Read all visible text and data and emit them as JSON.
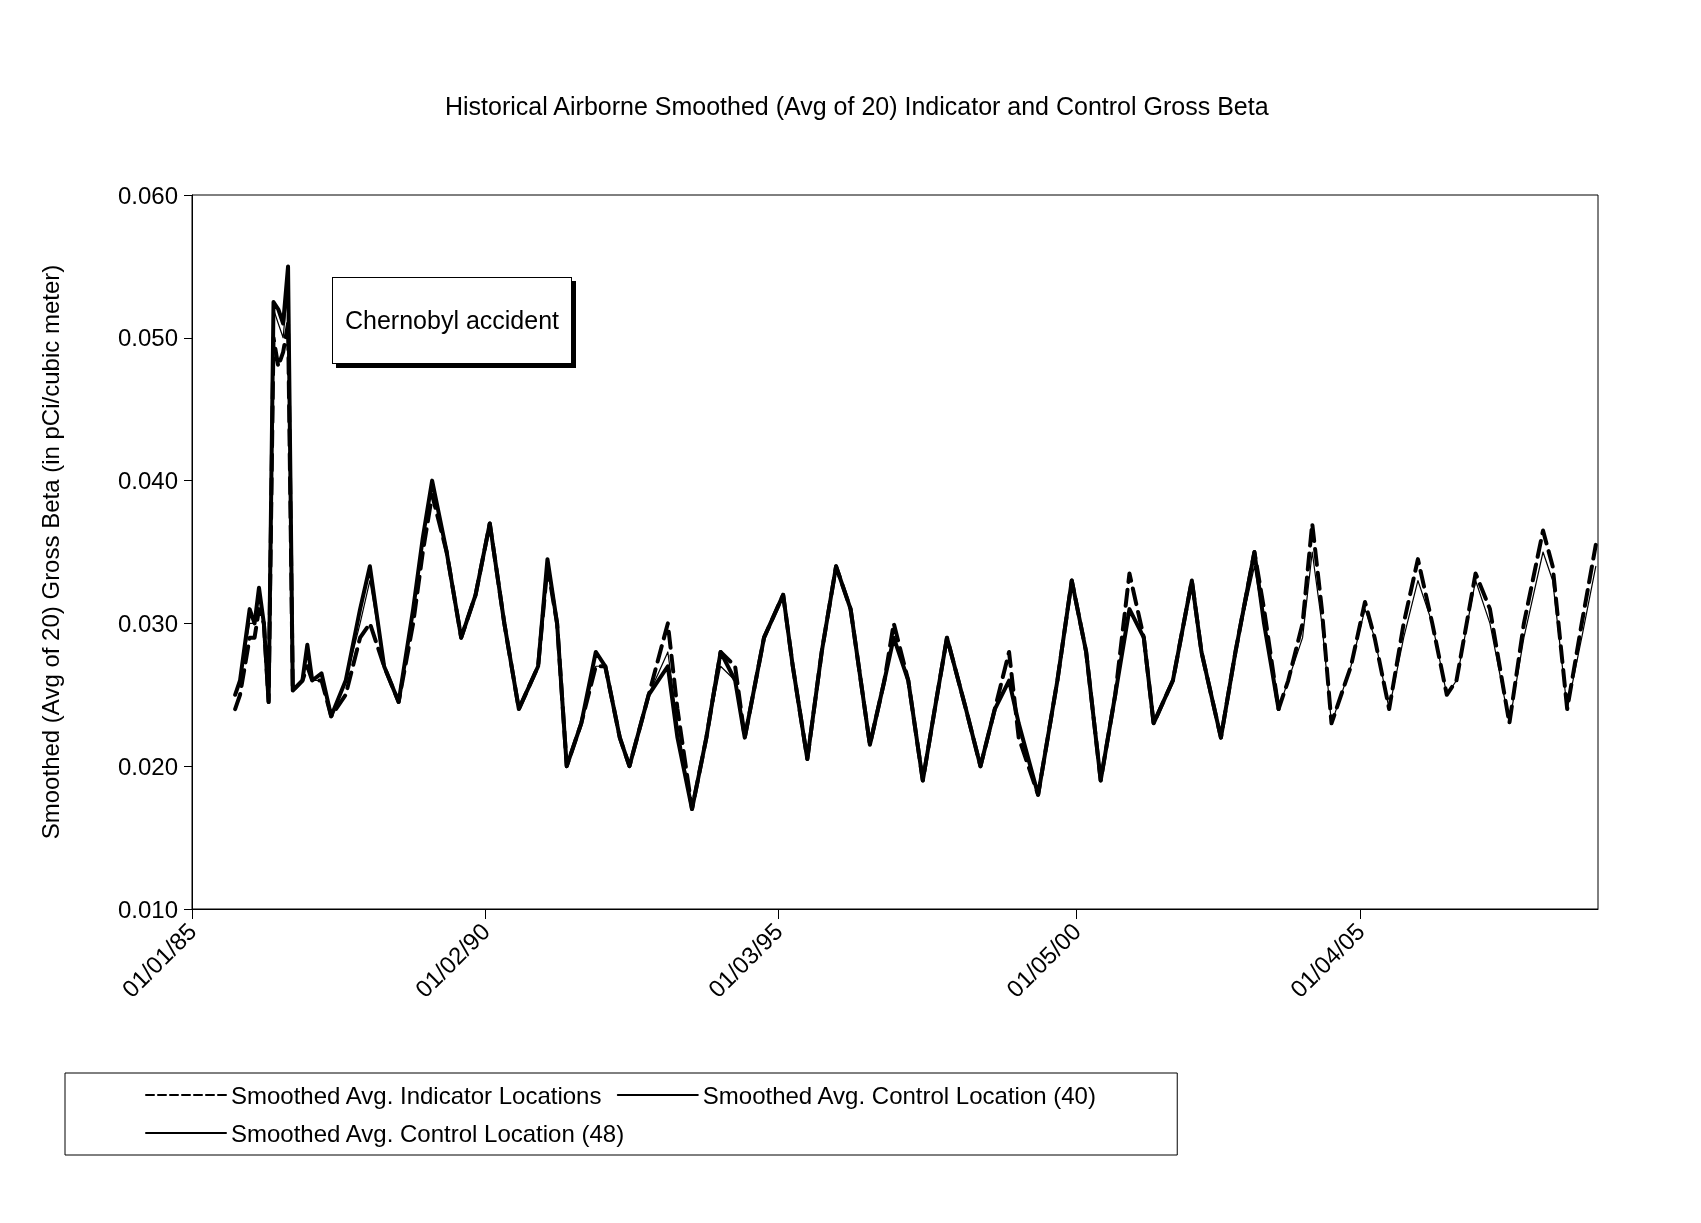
{
  "chart_data": {
    "type": "line",
    "title": "Historical Airborne Smoothed (Avg of 20) Indicator and Control Gross Beta",
    "ylabel": "Smoothed (Avg of 20) Gross Beta (in pCi/cubic meter)",
    "annotations": [
      "Chernobyl accident"
    ],
    "xlim": [
      "1985-01-01",
      "2009-05-15"
    ],
    "xticks": [
      {
        "value": "1985-01-01",
        "label": "01/01/85"
      },
      {
        "value": "1990-02-01",
        "label": "01/02/90"
      },
      {
        "value": "1995-03-01",
        "label": "01/03/95"
      },
      {
        "value": "2000-05-01",
        "label": "01/05/00"
      },
      {
        "value": "2005-04-01",
        "label": "01/04/05"
      }
    ],
    "ylim": [
      0.01,
      0.06
    ],
    "yticks": [
      {
        "value": 0.01,
        "label": "0.010"
      },
      {
        "value": 0.02,
        "label": "0.020"
      },
      {
        "value": 0.03,
        "label": "0.030"
      },
      {
        "value": 0.04,
        "label": "0.040"
      },
      {
        "value": 0.05,
        "label": "0.050"
      },
      {
        "value": 0.06,
        "label": "0.060"
      }
    ],
    "grid": false,
    "legend": "bottom",
    "marker": "none",
    "series": [
      {
        "name": "Smoothed Avg. Indicator Locations",
        "color": "#000000",
        "line_style": "dashed",
        "x": [
          "1985-10",
          "1985-11",
          "1986-01",
          "1986-02",
          "1986-03",
          "1986-04",
          "1986-05",
          "1986-06",
          "1986-07",
          "1986-08",
          "1986-09",
          "1986-10",
          "1986-12",
          "1987-01",
          "1987-02",
          "1987-04",
          "1987-06",
          "1987-09",
          "1987-12",
          "1988-02",
          "1988-05",
          "1988-08",
          "1988-11",
          "1989-01",
          "1989-03",
          "1989-06",
          "1989-09",
          "1989-12",
          "1990-03",
          "1990-06",
          "1990-09",
          "1991-01",
          "1991-03",
          "1991-05",
          "1991-07",
          "1991-10",
          "1992-01",
          "1992-03",
          "1992-06",
          "1992-08",
          "1992-12",
          "1993-04",
          "1993-06",
          "1993-09",
          "1993-12",
          "1994-03",
          "1994-06",
          "1994-08",
          "1994-12",
          "1995-04",
          "1995-06",
          "1995-09",
          "1995-12",
          "1996-03",
          "1996-06",
          "1996-10",
          "1997-01",
          "1997-03",
          "1997-06",
          "1997-09",
          "1997-12",
          "1998-02",
          "1998-06",
          "1998-09",
          "1998-12",
          "1999-03",
          "1999-05",
          "1999-09",
          "2000-01",
          "2000-04",
          "2000-07",
          "2000-10",
          "2001-01",
          "2001-04",
          "2001-07",
          "2001-09",
          "2002-01",
          "2002-05",
          "2002-07",
          "2002-11",
          "2003-02",
          "2003-06",
          "2003-08",
          "2003-11",
          "2004-01",
          "2004-04",
          "2004-06",
          "2004-08",
          "2004-10",
          "2005-02",
          "2005-05",
          "2005-07",
          "2005-10",
          "2006-01",
          "2006-04",
          "2006-07",
          "2006-10",
          "2006-12",
          "2007-04",
          "2007-07",
          "2007-11",
          "2008-02",
          "2008-06",
          "2008-08",
          "2008-11",
          "2009-02",
          "2009-05"
        ],
        "values": [
          0.024,
          0.025,
          0.029,
          0.029,
          0.031,
          0.03,
          0.0245,
          0.05,
          0.048,
          0.049,
          0.051,
          0.0253,
          0.026,
          0.027,
          0.026,
          0.026,
          0.0235,
          0.025,
          0.029,
          0.03,
          0.027,
          0.0245,
          0.03,
          0.035,
          0.039,
          0.035,
          0.029,
          0.032,
          0.037,
          0.03,
          0.024,
          0.027,
          0.034,
          0.03,
          0.02,
          0.023,
          0.027,
          0.027,
          0.022,
          0.02,
          0.025,
          0.03,
          0.024,
          0.017,
          0.022,
          0.028,
          0.027,
          0.022,
          0.029,
          0.032,
          0.027,
          0.0205,
          0.028,
          0.034,
          0.031,
          0.0215,
          0.026,
          0.03,
          0.026,
          0.019,
          0.025,
          0.029,
          0.024,
          0.02,
          0.024,
          0.028,
          0.022,
          0.018,
          0.026,
          0.033,
          0.028,
          0.019,
          0.025,
          0.0335,
          0.029,
          0.023,
          0.026,
          0.033,
          0.028,
          0.022,
          0.028,
          0.035,
          0.031,
          0.024,
          0.026,
          0.03,
          0.037,
          0.031,
          0.023,
          0.027,
          0.0315,
          0.029,
          0.024,
          0.03,
          0.0345,
          0.03,
          0.025,
          0.026,
          0.0335,
          0.031,
          0.023,
          0.03,
          0.0365,
          0.034,
          0.024,
          0.03,
          0.0355
        ]
      },
      {
        "name": "Smoothed Avg. Control Location (40)",
        "color": "#000000",
        "line_style": "solid",
        "x": [
          "1985-10",
          "1985-11",
          "1986-01",
          "1986-02",
          "1986-03",
          "1986-04",
          "1986-05",
          "1986-06",
          "1986-07",
          "1986-08",
          "1986-09",
          "1986-10",
          "1986-12",
          "1987-01",
          "1987-02",
          "1987-04",
          "1987-06",
          "1987-09",
          "1987-12",
          "1988-02",
          "1988-05",
          "1988-08",
          "1988-11",
          "1989-01",
          "1989-03",
          "1989-06",
          "1989-09",
          "1989-12",
          "1990-03",
          "1990-06",
          "1990-09",
          "1991-01",
          "1991-03",
          "1991-05",
          "1991-07",
          "1991-10",
          "1992-01",
          "1992-03",
          "1992-06",
          "1992-08",
          "1992-12",
          "1993-04",
          "1993-06",
          "1993-09",
          "1993-12",
          "1994-03",
          "1994-06",
          "1994-08",
          "1994-12",
          "1995-04",
          "1995-06",
          "1995-09",
          "1995-12",
          "1996-03",
          "1996-06",
          "1996-10",
          "1997-01",
          "1997-03",
          "1997-06",
          "1997-09",
          "1997-12",
          "1998-02",
          "1998-06",
          "1998-09",
          "1998-12",
          "1999-03",
          "1999-05",
          "1999-09",
          "2000-01",
          "2000-04",
          "2000-07",
          "2000-10",
          "2001-01",
          "2001-04",
          "2001-07",
          "2001-09",
          "2002-01",
          "2002-05",
          "2002-07",
          "2002-11",
          "2003-02",
          "2003-06",
          "2003-08",
          "2003-11"
        ],
        "values": [
          0.025,
          0.026,
          0.031,
          0.03,
          0.0325,
          0.03,
          0.0245,
          0.0525,
          0.052,
          0.051,
          0.055,
          0.0253,
          0.026,
          0.0285,
          0.026,
          0.0265,
          0.0235,
          0.026,
          0.031,
          0.034,
          0.027,
          0.0245,
          0.031,
          0.036,
          0.04,
          0.035,
          0.029,
          0.032,
          0.037,
          0.03,
          0.024,
          0.027,
          0.0345,
          0.03,
          0.02,
          0.023,
          0.028,
          0.027,
          0.022,
          0.02,
          0.025,
          0.027,
          0.022,
          0.017,
          0.022,
          0.028,
          0.026,
          0.022,
          0.029,
          0.032,
          0.027,
          0.0205,
          0.028,
          0.034,
          0.031,
          0.0215,
          0.026,
          0.029,
          0.026,
          0.019,
          0.025,
          0.029,
          0.024,
          0.02,
          0.024,
          0.026,
          0.023,
          0.018,
          0.026,
          0.033,
          0.028,
          0.019,
          0.025,
          0.031,
          0.029,
          0.023,
          0.026,
          0.033,
          0.028,
          0.022,
          0.028,
          0.035,
          0.03,
          0.024
        ]
      },
      {
        "name": "Smoothed Avg. Control Location (48)",
        "color": "#000000",
        "line_style": "solid",
        "x": [
          "1985-10",
          "1985-11",
          "1986-01",
          "1986-02",
          "1986-03",
          "1986-04",
          "1986-05",
          "1986-06",
          "1986-07",
          "1986-08",
          "1986-09",
          "1986-10",
          "1986-12",
          "1987-01",
          "1987-02",
          "1987-04",
          "1987-06",
          "1987-09",
          "1987-12",
          "1988-02",
          "1988-05",
          "1988-08",
          "1988-11",
          "1989-01",
          "1989-03",
          "1989-06",
          "1989-09",
          "1989-12",
          "1990-03",
          "1990-06",
          "1990-09",
          "1991-01",
          "1991-03",
          "1991-05",
          "1991-07",
          "1991-10",
          "1992-01",
          "1992-03",
          "1992-06",
          "1992-08",
          "1992-12",
          "1993-04",
          "1993-06",
          "1993-09",
          "1993-12",
          "1994-03",
          "1994-06",
          "1994-08",
          "1994-12",
          "1995-04",
          "1995-06",
          "1995-09",
          "1995-12",
          "1996-03",
          "1996-06",
          "1996-10",
          "1997-01",
          "1997-03",
          "1997-06",
          "1997-09",
          "1997-12",
          "1998-02",
          "1998-06",
          "1998-09",
          "1998-12",
          "1999-03",
          "1999-05",
          "1999-09",
          "2000-01",
          "2000-04",
          "2000-07",
          "2000-10",
          "2001-01",
          "2001-04",
          "2001-07",
          "2001-09",
          "2002-01",
          "2002-05",
          "2002-07",
          "2002-11",
          "2003-02",
          "2003-06",
          "2003-08",
          "2003-11",
          "2004-01",
          "2004-04",
          "2004-06",
          "2004-08",
          "2004-10",
          "2005-02",
          "2005-05",
          "2005-07",
          "2005-10",
          "2006-01",
          "2006-04",
          "2006-07",
          "2006-10",
          "2006-12",
          "2007-04",
          "2007-07",
          "2007-11",
          "2008-02",
          "2008-06",
          "2008-08",
          "2008-11",
          "2009-02",
          "2009-05"
        ],
        "values": [
          0.025,
          0.026,
          0.03,
          0.03,
          0.032,
          0.03,
          0.0245,
          0.052,
          0.051,
          0.05,
          0.054,
          0.0253,
          0.026,
          0.028,
          0.026,
          0.026,
          0.0235,
          0.026,
          0.03,
          0.033,
          0.027,
          0.0245,
          0.031,
          0.036,
          0.04,
          0.035,
          0.029,
          0.032,
          0.037,
          0.03,
          0.024,
          0.027,
          0.034,
          0.03,
          0.02,
          0.023,
          0.027,
          0.027,
          0.022,
          0.02,
          0.025,
          0.028,
          0.023,
          0.017,
          0.022,
          0.027,
          0.026,
          0.022,
          0.029,
          0.032,
          0.027,
          0.0205,
          0.028,
          0.034,
          0.031,
          0.0215,
          0.026,
          0.029,
          0.026,
          0.019,
          0.025,
          0.029,
          0.024,
          0.02,
          0.024,
          0.026,
          0.023,
          0.018,
          0.026,
          0.033,
          0.028,
          0.019,
          0.025,
          0.031,
          0.029,
          0.023,
          0.026,
          0.033,
          0.028,
          0.022,
          0.028,
          0.034,
          0.03,
          0.024,
          0.026,
          0.029,
          0.035,
          0.03,
          0.023,
          0.027,
          0.031,
          0.029,
          0.024,
          0.029,
          0.033,
          0.03,
          0.025,
          0.026,
          0.033,
          0.03,
          0.023,
          0.029,
          0.035,
          0.033,
          0.024,
          0.029,
          0.034
        ]
      }
    ]
  }
}
